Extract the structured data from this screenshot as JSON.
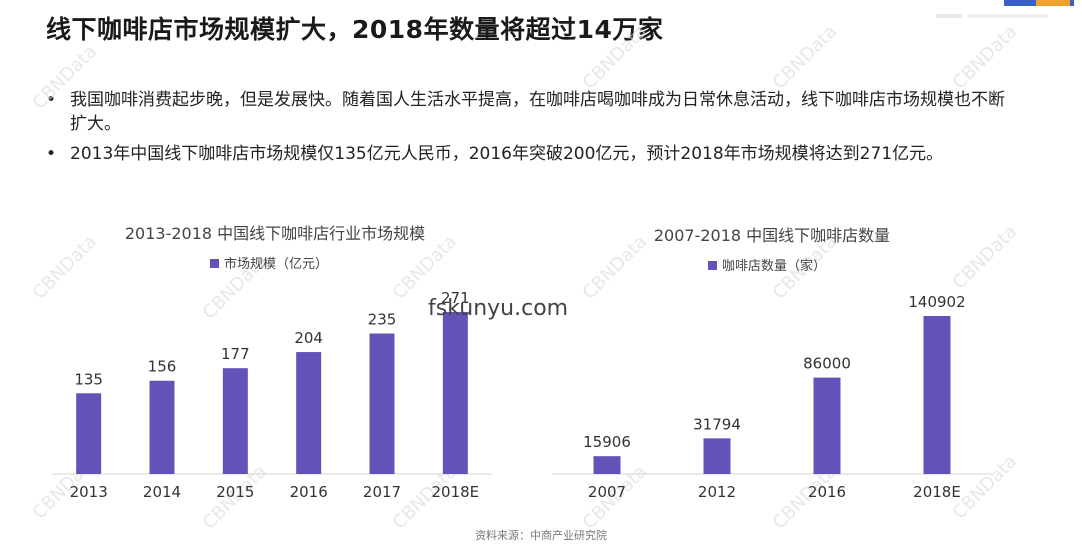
{
  "title": "线下咖啡店市场规模扩大，2018年数量将超过14万家",
  "bullets": [
    "我国咖啡消费起步晚，但是发展快。随着国人生活水平提高，在咖啡店喝咖啡成为日常休息活动，线下咖啡店市场规模也不断扩大。",
    "2013年中国线下咖啡店市场规模仅135亿元人民币，2016年突破200亿元，预计2018年市场规模将达到271亿元。"
  ],
  "watermark_text": "fskunyu.com",
  "watermark_brand": "CBNData",
  "source": "资料来源：中商产业研究院",
  "colors": {
    "bar": "#6353b9",
    "axis": "#d6d6d6",
    "label": "#333333"
  },
  "chart_data": [
    {
      "type": "bar",
      "title": "2013-2018 中国线下咖啡店行业市场规模",
      "categories": [
        "2013",
        "2014",
        "2015",
        "2016",
        "2017",
        "2018E"
      ],
      "series": [
        {
          "name": "市场规模（亿元）",
          "values": [
            135,
            156,
            177,
            204,
            235,
            271
          ]
        }
      ],
      "ylim": [
        0,
        290
      ],
      "grid": false,
      "legend": "top-center"
    },
    {
      "type": "bar",
      "title": "2007-2018 中国线下咖啡店数量",
      "categories": [
        "2007",
        "2012",
        "2016",
        "2018E"
      ],
      "series": [
        {
          "name": "咖啡店数量（家）",
          "values": [
            15906,
            31794,
            86000,
            140902
          ]
        }
      ],
      "ylim": [
        0,
        165000
      ],
      "grid": false,
      "legend": "top-center"
    }
  ]
}
